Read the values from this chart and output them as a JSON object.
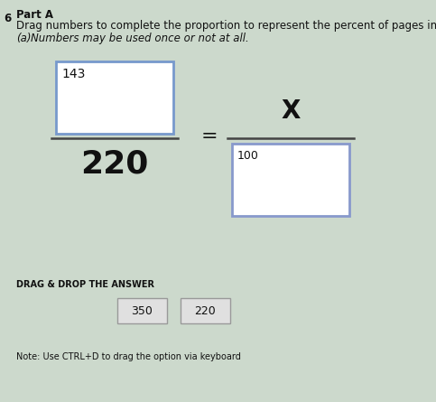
{
  "bg_color": "#ccd9cc",
  "title_num": "6",
  "title_part": "Part A",
  "title_main": "Drag numbers to complete the proportion to represent the percent of pages in the",
  "subtitle": "Numbers may be used once or not at all.",
  "subtitle_label": "(a)",
  "numerator_left": "143",
  "denominator_left": "220",
  "equals": "=",
  "numerator_right": "X",
  "denominator_right_hint": "100",
  "drag_label": "DRAG & DROP THE ANSWER",
  "drag_options": [
    "350",
    "220"
  ],
  "note": "Note: Use CTRL+D to drag the option via keyboard",
  "box_color_left": "#7799cc",
  "box_color_right": "#8899cc",
  "text_color": "#111111",
  "font_size_header": 8.5,
  "font_size_143": 10,
  "font_size_220": 26,
  "font_size_x": 20,
  "font_size_100": 9,
  "font_size_drag_label": 7,
  "font_size_drag_opts": 9,
  "font_size_note": 7
}
